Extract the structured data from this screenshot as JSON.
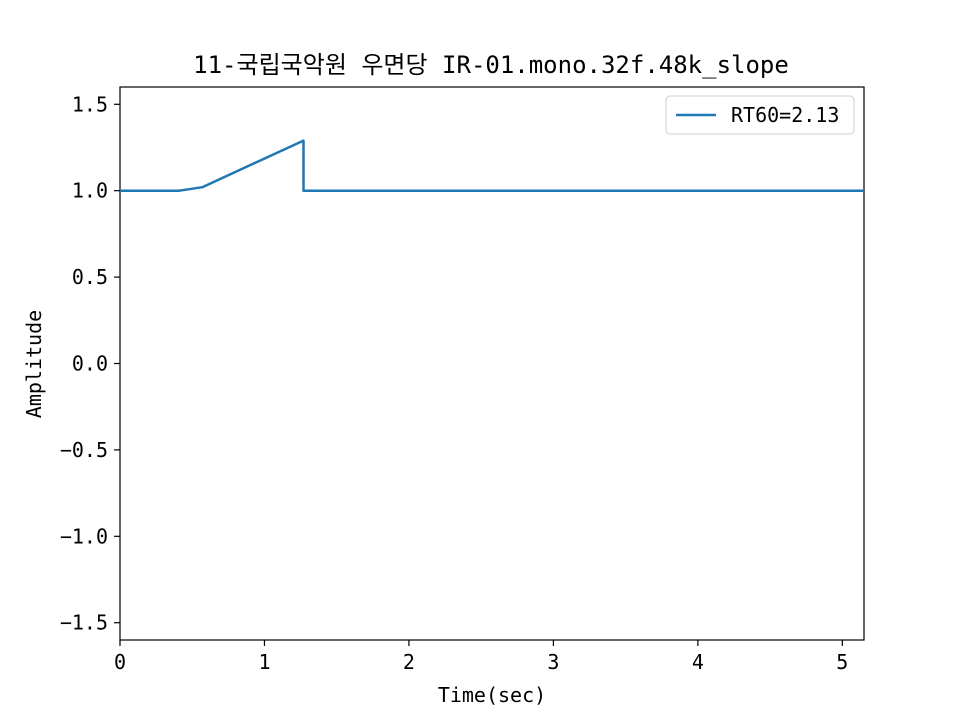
{
  "chart_data": {
    "type": "line",
    "title": "11-국립국악원 우면당 IR-01.mono.32f.48k_slope",
    "xlabel": "Time(sec)",
    "ylabel": "Amplitude",
    "xlim": [
      0,
      5.15
    ],
    "ylim": [
      -1.6,
      1.6
    ],
    "xticks": [
      0,
      1,
      2,
      3,
      4,
      5
    ],
    "xtick_labels": [
      "0",
      "1",
      "2",
      "3",
      "4",
      "5"
    ],
    "yticks": [
      1.5,
      1.0,
      0.5,
      0.0,
      -0.5,
      -1.0,
      -1.5
    ],
    "ytick_labels": [
      "1.5",
      "1.0",
      "0.5",
      "0.0",
      "−0.5",
      "−1.0",
      "−1.5"
    ],
    "grid": false,
    "legend_position": "top-right",
    "series": [
      {
        "name": "RT60=2.13",
        "color": "#1f77b4",
        "x": [
          0,
          0.41,
          0.57,
          1.27,
          1.27,
          5.15
        ],
        "y": [
          1.0,
          1.0,
          1.02,
          1.29,
          1.0,
          1.0
        ]
      }
    ]
  }
}
